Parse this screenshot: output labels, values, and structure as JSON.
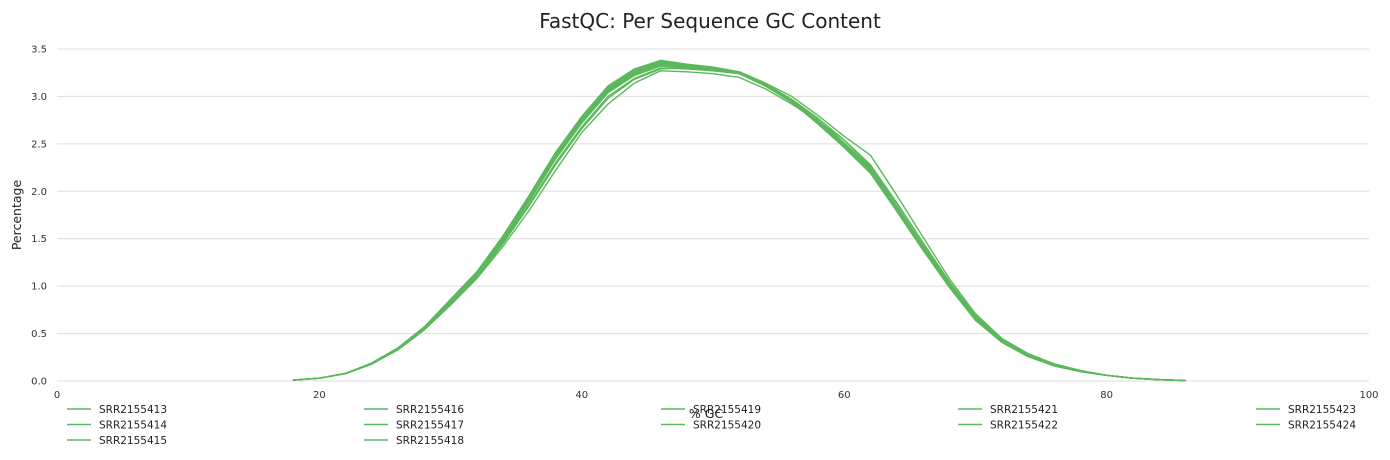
{
  "chart_data": {
    "type": "line",
    "title": "FastQC: Per Sequence GC Content",
    "xlabel": "% GC",
    "ylabel": "Percentage",
    "xlim": [
      0,
      100
    ],
    "ylim": [
      0,
      3.5
    ],
    "xticks": [
      0,
      20,
      40,
      60,
      80,
      100
    ],
    "yticks": [
      "0.0",
      "0.5",
      "1.0",
      "1.5",
      "2.0",
      "2.5",
      "3.0",
      "3.5"
    ],
    "grid": "horizontal",
    "legend_position": "bottom",
    "line_color": "#5cb85c",
    "x": [
      18,
      20,
      22,
      24,
      26,
      28,
      30,
      32,
      34,
      36,
      38,
      40,
      42,
      44,
      46,
      48,
      50,
      52,
      54,
      56,
      58,
      60,
      62,
      64,
      66,
      68,
      70,
      72,
      74,
      76,
      78,
      80,
      82,
      84,
      86
    ],
    "series": [
      {
        "name": "SRR2155413",
        "values": [
          0.01,
          0.03,
          0.08,
          0.18,
          0.33,
          0.54,
          0.8,
          1.08,
          1.42,
          1.8,
          2.22,
          2.62,
          2.92,
          3.14,
          3.27,
          3.26,
          3.24,
          3.2,
          3.08,
          2.92,
          2.74,
          2.54,
          2.26,
          1.88,
          1.46,
          1.04,
          0.68,
          0.43,
          0.28,
          0.18,
          0.11,
          0.06,
          0.03,
          0.015,
          0.005
        ]
      },
      {
        "name": "SRR2155414",
        "values": [
          0.01,
          0.03,
          0.08,
          0.18,
          0.34,
          0.56,
          0.84,
          1.12,
          1.5,
          1.92,
          2.36,
          2.74,
          3.06,
          3.24,
          3.34,
          3.31,
          3.28,
          3.24,
          3.11,
          2.94,
          2.72,
          2.48,
          2.22,
          1.82,
          1.41,
          1.01,
          0.66,
          0.42,
          0.27,
          0.17,
          0.1,
          0.06,
          0.03,
          0.014,
          0.005
        ]
      },
      {
        "name": "SRR2155415",
        "values": [
          0.01,
          0.03,
          0.08,
          0.19,
          0.35,
          0.57,
          0.86,
          1.15,
          1.53,
          1.95,
          2.4,
          2.78,
          3.1,
          3.28,
          3.37,
          3.33,
          3.3,
          3.25,
          3.12,
          2.95,
          2.72,
          2.47,
          2.2,
          1.8,
          1.39,
          1.0,
          0.65,
          0.41,
          0.26,
          0.16,
          0.1,
          0.06,
          0.03,
          0.014,
          0.005
        ]
      },
      {
        "name": "SRR2155416",
        "values": [
          0.01,
          0.03,
          0.08,
          0.18,
          0.34,
          0.56,
          0.85,
          1.13,
          1.51,
          1.93,
          2.37,
          2.75,
          3.07,
          3.25,
          3.35,
          3.32,
          3.29,
          3.25,
          3.12,
          2.96,
          2.74,
          2.5,
          2.24,
          1.84,
          1.43,
          1.02,
          0.67,
          0.42,
          0.27,
          0.17,
          0.1,
          0.06,
          0.03,
          0.014,
          0.005
        ]
      },
      {
        "name": "SRR2155417",
        "values": [
          0.01,
          0.03,
          0.08,
          0.18,
          0.34,
          0.55,
          0.83,
          1.11,
          1.49,
          1.9,
          2.34,
          2.72,
          3.04,
          3.22,
          3.32,
          3.3,
          3.27,
          3.24,
          3.11,
          2.95,
          2.73,
          2.49,
          2.23,
          1.83,
          1.42,
          1.02,
          0.67,
          0.42,
          0.27,
          0.17,
          0.1,
          0.06,
          0.03,
          0.014,
          0.005
        ]
      },
      {
        "name": "SRR2155418",
        "values": [
          0.01,
          0.03,
          0.08,
          0.19,
          0.35,
          0.57,
          0.85,
          1.14,
          1.52,
          1.94,
          2.38,
          2.76,
          3.08,
          3.26,
          3.36,
          3.32,
          3.3,
          3.25,
          3.12,
          2.96,
          2.73,
          2.48,
          2.21,
          1.81,
          1.4,
          1.0,
          0.66,
          0.41,
          0.26,
          0.16,
          0.1,
          0.06,
          0.03,
          0.014,
          0.005
        ]
      },
      {
        "name": "SRR2155419",
        "values": [
          0.01,
          0.03,
          0.08,
          0.18,
          0.34,
          0.55,
          0.82,
          1.1,
          1.47,
          1.87,
          2.3,
          2.68,
          3.0,
          3.19,
          3.3,
          3.29,
          3.27,
          3.25,
          3.13,
          2.97,
          2.77,
          2.54,
          2.28,
          1.88,
          1.46,
          1.05,
          0.69,
          0.44,
          0.28,
          0.18,
          0.11,
          0.06,
          0.03,
          0.015,
          0.005
        ]
      },
      {
        "name": "SRR2155420",
        "values": [
          0.01,
          0.03,
          0.08,
          0.18,
          0.33,
          0.54,
          0.81,
          1.09,
          1.45,
          1.85,
          2.28,
          2.66,
          2.98,
          3.18,
          3.29,
          3.3,
          3.28,
          3.26,
          3.14,
          3.0,
          2.8,
          2.58,
          2.38,
          1.96,
          1.52,
          1.08,
          0.71,
          0.45,
          0.29,
          0.18,
          0.11,
          0.06,
          0.03,
          0.015,
          0.005
        ]
      },
      {
        "name": "SRR2155421",
        "values": [
          0.01,
          0.03,
          0.08,
          0.18,
          0.34,
          0.56,
          0.84,
          1.12,
          1.5,
          1.91,
          2.35,
          2.73,
          3.05,
          3.23,
          3.33,
          3.31,
          3.29,
          3.25,
          3.12,
          2.96,
          2.75,
          2.51,
          2.25,
          1.85,
          1.43,
          1.03,
          0.67,
          0.42,
          0.27,
          0.17,
          0.1,
          0.06,
          0.03,
          0.014,
          0.005
        ]
      },
      {
        "name": "SRR2155422",
        "values": [
          0.01,
          0.03,
          0.08,
          0.19,
          0.35,
          0.57,
          0.86,
          1.15,
          1.53,
          1.96,
          2.41,
          2.79,
          3.11,
          3.29,
          3.38,
          3.34,
          3.31,
          3.26,
          3.12,
          2.94,
          2.71,
          2.46,
          2.19,
          1.79,
          1.38,
          0.99,
          0.64,
          0.41,
          0.26,
          0.16,
          0.1,
          0.06,
          0.03,
          0.014,
          0.005
        ]
      },
      {
        "name": "SRR2155423",
        "values": [
          0.01,
          0.03,
          0.08,
          0.18,
          0.34,
          0.56,
          0.85,
          1.14,
          1.52,
          1.94,
          2.39,
          2.77,
          3.09,
          3.27,
          3.36,
          3.33,
          3.3,
          3.25,
          3.11,
          2.94,
          2.72,
          2.47,
          2.2,
          1.81,
          1.4,
          1.0,
          0.65,
          0.41,
          0.26,
          0.16,
          0.1,
          0.06,
          0.03,
          0.014,
          0.005
        ]
      },
      {
        "name": "SRR2155424",
        "values": [
          0.01,
          0.03,
          0.08,
          0.18,
          0.34,
          0.55,
          0.83,
          1.12,
          1.49,
          1.9,
          2.35,
          2.73,
          3.05,
          3.24,
          3.34,
          3.31,
          3.29,
          3.25,
          3.12,
          2.96,
          2.74,
          2.5,
          2.24,
          1.84,
          1.42,
          1.02,
          0.67,
          0.42,
          0.27,
          0.17,
          0.1,
          0.06,
          0.03,
          0.014,
          0.005
        ]
      }
    ]
  }
}
